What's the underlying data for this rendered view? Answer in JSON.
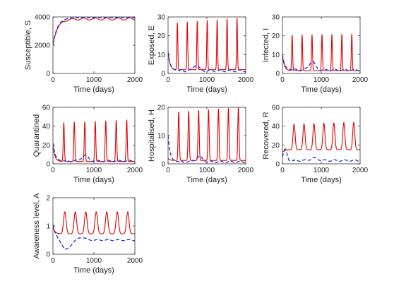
{
  "colors": {
    "solid": "#e00000",
    "dashed": "#1a2bd6"
  },
  "chart_data": [
    {
      "type": "line",
      "ylabel": "Susceptible, S",
      "xlabel": "Time (days)",
      "xlim": [
        0,
        2000
      ],
      "ylim": [
        0,
        4000
      ],
      "xticks": [
        "0",
        "1000",
        "2000"
      ],
      "yticks": [
        "0",
        "2000",
        "4000"
      ],
      "series": [
        {
          "style": "solid",
          "start": 2000,
          "rise": 340,
          "base": 3860,
          "amp": 80,
          "period": 280,
          "phase": 120,
          "decay": 0
        },
        {
          "style": "dashed",
          "start": 2050,
          "rise": 340,
          "base": 3960,
          "amp": 0,
          "period": 280,
          "phase": 0,
          "decay": 0
        }
      ]
    },
    {
      "type": "line",
      "ylabel": "Exposed, E",
      "xlabel": "Time (days)",
      "xlim": [
        0,
        2000
      ],
      "ylim": [
        0,
        30
      ],
      "xticks": [
        "0",
        "1000",
        "2000"
      ],
      "yticks": [
        "0",
        "10",
        "20",
        "30"
      ],
      "series": [
        {
          "style": "solid",
          "start": 12,
          "base": 2.0,
          "peak": 27,
          "period": 256,
          "first": 240,
          "width": 0.13,
          "grow": 2.5,
          "decay": 0
        },
        {
          "style": "dashed",
          "start": 11,
          "base": 1.4,
          "decay": 60,
          "bump": 3.2,
          "bumpAt": 720,
          "bumpW": 70,
          "wave": 0.5,
          "period": 256
        }
      ]
    },
    {
      "type": "line",
      "ylabel": "Infected, I",
      "xlabel": "Time (days)",
      "xlim": [
        0,
        2000
      ],
      "ylim": [
        0,
        30
      ],
      "xticks": [
        "0",
        "1000",
        "2000"
      ],
      "yticks": [
        "0",
        "10",
        "20",
        "30"
      ],
      "series": [
        {
          "style": "solid",
          "start": 10,
          "base": 1.5,
          "peak": 20.5,
          "period": 256,
          "first": 250,
          "width": 0.14,
          "grow": 0.5,
          "decay": 0
        },
        {
          "style": "dashed",
          "start": 10,
          "base": 1.8,
          "decay": 60,
          "bump": 4.5,
          "bumpAt": 760,
          "bumpW": 80,
          "wave": 0.5,
          "period": 256
        }
      ]
    },
    {
      "type": "line",
      "ylabel": "Quarantined",
      "xlabel": "Time (days)",
      "xlim": [
        0,
        2000
      ],
      "ylim": [
        0,
        60
      ],
      "xticks": [
        "0",
        "1000",
        "2000"
      ],
      "yticks": [
        "0",
        "20",
        "40",
        "60"
      ],
      "series": [
        {
          "style": "solid",
          "start": 20,
          "base": 2.5,
          "peak": 44,
          "period": 256,
          "first": 265,
          "width": 0.15,
          "grow": 3,
          "decay": 0
        },
        {
          "style": "dashed",
          "start": 22,
          "base": 3.0,
          "decay": 55,
          "bump": 6,
          "bumpAt": 780,
          "bumpW": 80,
          "wave": 0.8,
          "period": 256
        }
      ]
    },
    {
      "type": "line",
      "ylabel": "Hospitalised, H",
      "xlabel": "Time (days)",
      "xlim": [
        0,
        2000
      ],
      "ylim": [
        0,
        20
      ],
      "xticks": [
        "0",
        "1000",
        "2000"
      ],
      "yticks": [
        "0",
        "10",
        "20"
      ],
      "series": [
        {
          "style": "solid",
          "start": 2,
          "base": 1.2,
          "peak": 18.5,
          "period": 256,
          "first": 275,
          "width": 0.17,
          "grow": 1.5,
          "decay": 0
        },
        {
          "style": "dashed",
          "start": 10,
          "base": 0.7,
          "decay": 55,
          "bump": 1.8,
          "bumpAt": 800,
          "bumpW": 90,
          "wave": 0.3,
          "period": 256
        }
      ]
    },
    {
      "type": "line",
      "ylabel": "Recovered, R",
      "xlabel": "Time (days)",
      "xlim": [
        0,
        2000
      ],
      "ylim": [
        0,
        60
      ],
      "xticks": [
        "0",
        "1000",
        "2000"
      ],
      "yticks": [
        "0",
        "20",
        "40",
        "60"
      ],
      "series": [
        {
          "style": "solid",
          "start": 12,
          "base": 15,
          "peak": 42,
          "period": 256,
          "first": 300,
          "width": 0.3,
          "grow": 2,
          "decay": 0,
          "early": 16,
          "earlyAt": 70,
          "earlyW": 55
        },
        {
          "style": "dashed",
          "start": 12,
          "base": 3.5,
          "decay": 0,
          "early": 14,
          "earlyAt": 70,
          "earlyW": 55,
          "bump": 2.5,
          "bumpAt": 820,
          "bumpW": 100,
          "wave": 0.8,
          "period": 256
        }
      ]
    },
    {
      "type": "line",
      "ylabel": "Awareness level, A",
      "xlabel": "Time (days)",
      "xlim": [
        0,
        2000
      ],
      "ylim": [
        0,
        2
      ],
      "xticks": [
        "0",
        "1000",
        "2000"
      ],
      "yticks": [
        "0",
        "1",
        "2"
      ],
      "series": [
        {
          "style": "solid",
          "start": 1.0,
          "base": 0.72,
          "peak": 1.5,
          "period": 256,
          "first": 290,
          "width": 0.35,
          "grow": 0,
          "decay": 0
        },
        {
          "style": "dashed",
          "start": 1.05,
          "base": 0.5,
          "decay": 0,
          "dip": 0.35,
          "dipAt": 300,
          "dipW": 120,
          "bump": 0.1,
          "bumpAt": 700,
          "bumpW": 90,
          "wave": 0.02,
          "period": 256
        }
      ]
    }
  ]
}
